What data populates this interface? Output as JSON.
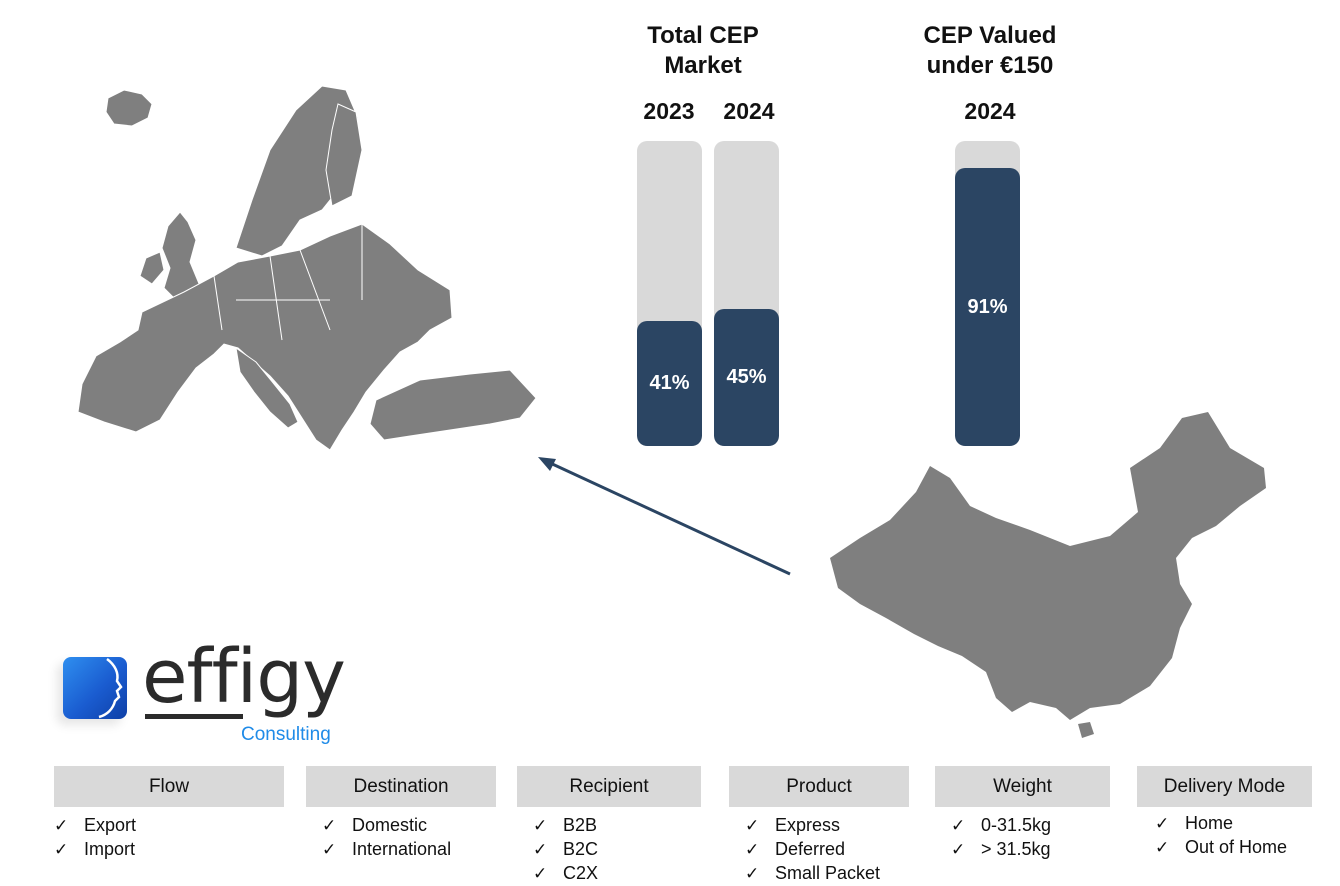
{
  "chart_data": [
    {
      "type": "bar",
      "title": "Total CEP Market",
      "categories": [
        "2023",
        "2024"
      ],
      "values": [
        41,
        45
      ],
      "value_labels": [
        "41%",
        "45%"
      ],
      "ylim": [
        0,
        100
      ]
    },
    {
      "type": "bar",
      "title": "CEP Valued under €150",
      "categories": [
        "2024"
      ],
      "values": [
        91
      ],
      "value_labels": [
        "91%"
      ],
      "ylim": [
        0,
        100
      ]
    }
  ],
  "colors": {
    "bar_fill": "#2b4563",
    "bar_track": "#d9d9d9",
    "map": "#7f7f7f",
    "arrow": "#2b4563",
    "segment_header": "#d9d9d9",
    "logo_blue": "#1f8be8"
  },
  "headers": {
    "total_line1": "Total CEP",
    "total_line2": "Market",
    "valued_line1": "CEP Valued",
    "valued_line2": "under €150"
  },
  "logo": {
    "word": "effigy",
    "sub": "Consulting",
    "icon": "face-profile-icon"
  },
  "maps": {
    "origin": "china-map",
    "destination": "europe-map",
    "arrow": "arrow-china-to-europe"
  },
  "segments": [
    {
      "title": "Flow",
      "items": [
        "Export",
        "Import"
      ]
    },
    {
      "title": "Destination",
      "items": [
        "Domestic",
        "International"
      ]
    },
    {
      "title": "Recipient",
      "items": [
        "B2B",
        "B2C",
        "C2X"
      ]
    },
    {
      "title": "Product",
      "items": [
        "Express",
        "Deferred",
        "Small Packet"
      ]
    },
    {
      "title": "Weight",
      "items": [
        "0-31.5kg",
        "> 31.5kg"
      ]
    },
    {
      "title": "Delivery Mode",
      "items": [
        "Home",
        "Out of Home"
      ]
    }
  ],
  "check_glyph": "✓"
}
